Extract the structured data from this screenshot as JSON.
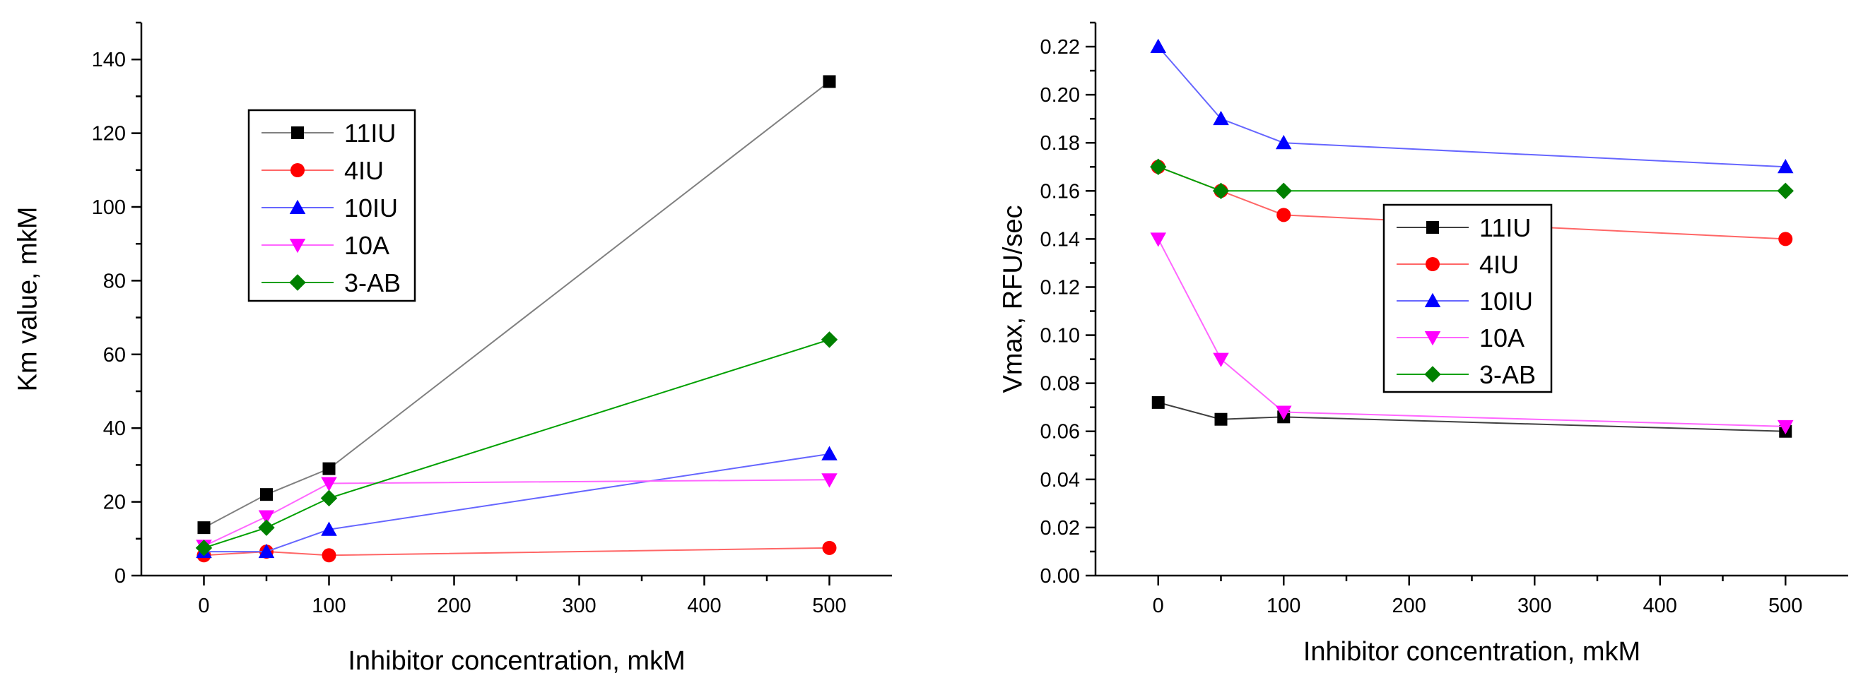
{
  "chart_data": [
    {
      "type": "line",
      "title": "",
      "xlabel": "Inhibitor concentration, mkM",
      "ylabel": "Km value, mkM",
      "xlim": [
        -50,
        550
      ],
      "ylim": [
        0,
        150
      ],
      "xticks": [
        "0",
        "100",
        "200",
        "300",
        "400",
        "500"
      ],
      "yticks": [
        "0",
        "20",
        "40",
        "60",
        "80",
        "100",
        "120",
        "140"
      ],
      "legend_position": "upper-left",
      "x": [
        0,
        50,
        100,
        500
      ],
      "series": [
        {
          "name": "11IU",
          "color": "#000000",
          "line_color": "#808080",
          "marker": "square",
          "values": [
            13,
            22,
            29,
            134
          ]
        },
        {
          "name": "4IU",
          "color": "#ff0000",
          "line_color": "#ff6666",
          "marker": "circle",
          "values": [
            5.5,
            6.5,
            5.5,
            7.5
          ]
        },
        {
          "name": "10IU",
          "color": "#0000ff",
          "line_color": "#6666ff",
          "marker": "triangle-up",
          "values": [
            6.5,
            6.5,
            12.5,
            33
          ]
        },
        {
          "name": "10A",
          "color": "#ff00ff",
          "line_color": "#ff66ff",
          "marker": "triangle-down",
          "values": [
            8,
            16,
            25,
            26
          ]
        },
        {
          "name": "3-AB",
          "color": "#008000",
          "line_color": "#00a000",
          "marker": "diamond",
          "values": [
            7.5,
            13,
            21,
            64
          ]
        }
      ]
    },
    {
      "type": "line",
      "title": "",
      "xlabel": "Inhibitor concentration, mkM",
      "ylabel": "Vmax, RFU/sec",
      "xlim": [
        -50,
        550
      ],
      "ylim": [
        0,
        0.23
      ],
      "xticks": [
        "0",
        "100",
        "200",
        "300",
        "400",
        "500"
      ],
      "yticks": [
        "0.00",
        "0.02",
        "0.04",
        "0.06",
        "0.08",
        "0.10",
        "0.12",
        "0.14",
        "0.16",
        "0.18",
        "0.20",
        "0.22"
      ],
      "legend_position": "center",
      "x": [
        0,
        50,
        100,
        500
      ],
      "series": [
        {
          "name": "11IU",
          "color": "#000000",
          "line_color": "#404040",
          "marker": "square",
          "values": [
            0.072,
            0.065,
            0.066,
            0.06
          ]
        },
        {
          "name": "4IU",
          "color": "#ff0000",
          "line_color": "#ff6666",
          "marker": "circle",
          "values": [
            0.17,
            0.16,
            0.15,
            0.14
          ]
        },
        {
          "name": "10IU",
          "color": "#0000ff",
          "line_color": "#6666ff",
          "marker": "triangle-up",
          "values": [
            0.22,
            0.19,
            0.18,
            0.17
          ]
        },
        {
          "name": "10A",
          "color": "#ff00ff",
          "line_color": "#ff66ff",
          "marker": "triangle-down",
          "values": [
            0.14,
            0.09,
            0.068,
            0.062
          ]
        },
        {
          "name": "3-AB",
          "color": "#008000",
          "line_color": "#00a000",
          "marker": "diamond",
          "values": [
            0.17,
            0.16,
            0.16,
            0.16
          ]
        }
      ]
    }
  ]
}
